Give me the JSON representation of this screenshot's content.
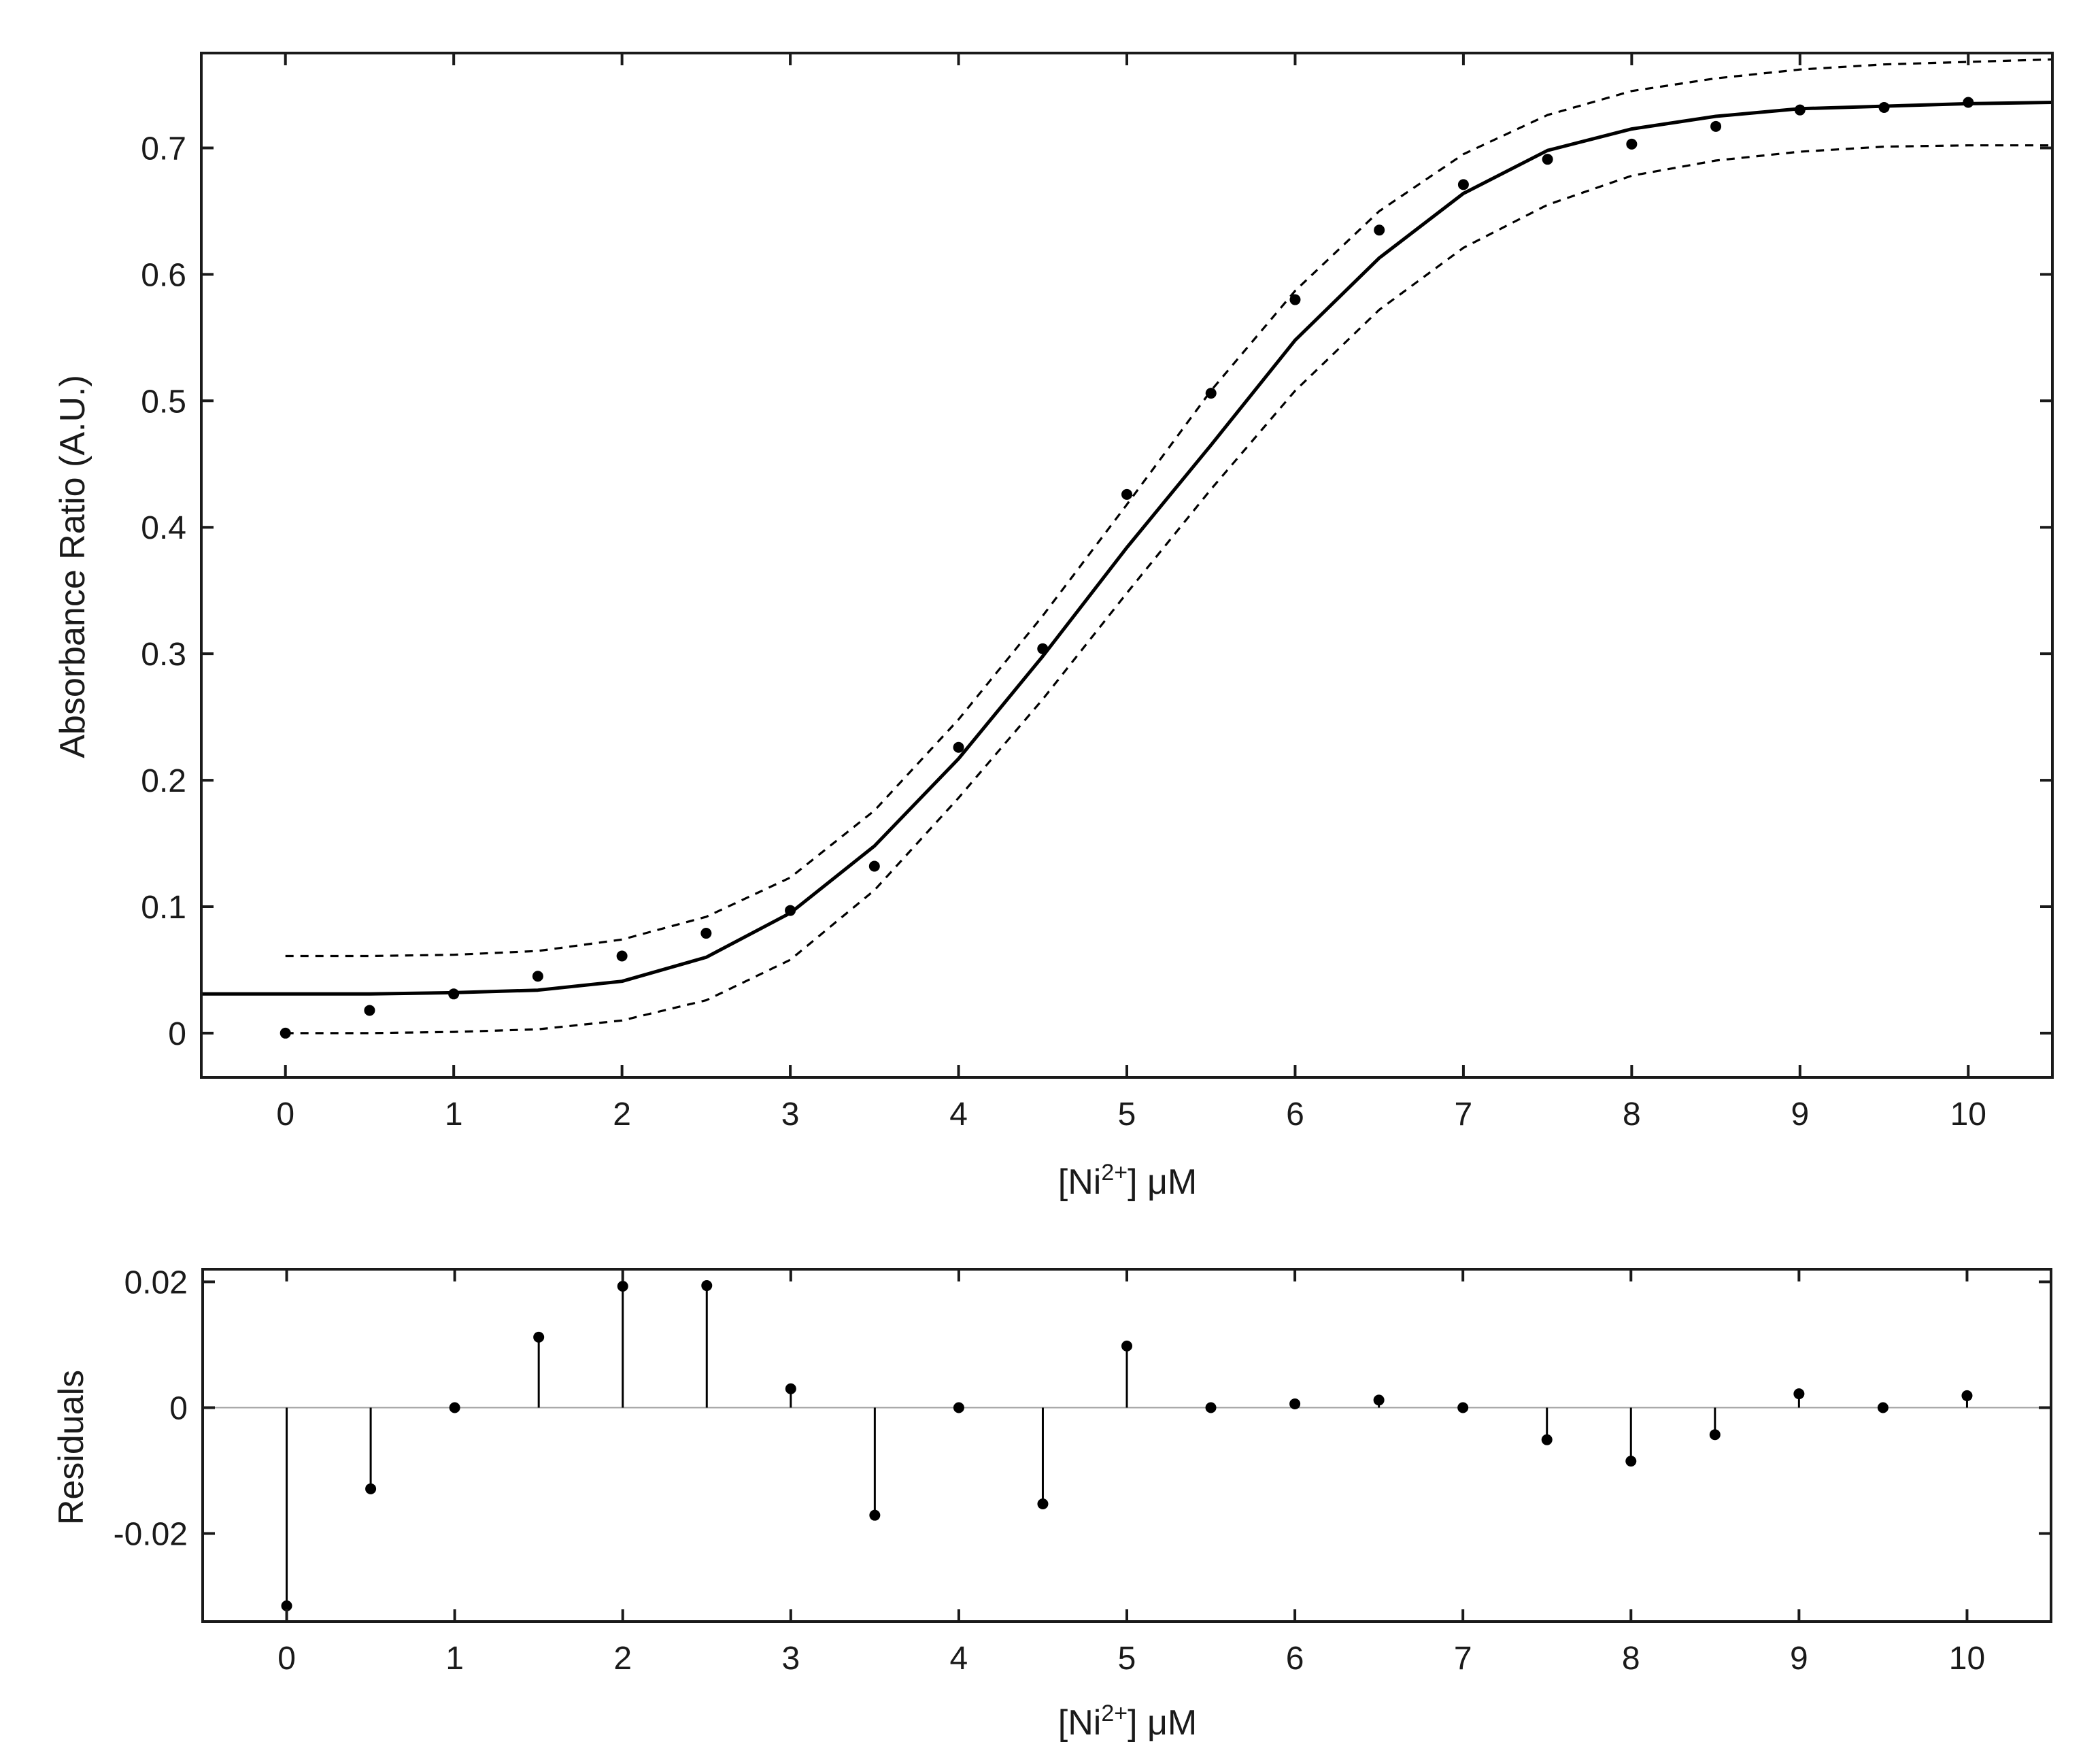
{
  "chart_data": [
    {
      "type": "scatter",
      "title": "",
      "xlabel": {
        "prefix": "[Ni",
        "superscript": "2+",
        "suffix": "] μM"
      },
      "ylabel": "Absorbance Ratio (A.U.)",
      "xlim": [
        -0.5,
        10.5
      ],
      "ylim": [
        -0.035,
        0.775
      ],
      "x_ticks": [
        0,
        1,
        2,
        3,
        4,
        5,
        6,
        7,
        8,
        9,
        10
      ],
      "x_tick_labels": [
        "0",
        "1",
        "2",
        "3",
        "4",
        "5",
        "6",
        "7",
        "8",
        "9",
        "10"
      ],
      "y_ticks": [
        0,
        0.1,
        0.2,
        0.3,
        0.4,
        0.5,
        0.6,
        0.7
      ],
      "y_tick_labels": [
        "0",
        "0.1",
        "0.2",
        "0.3",
        "0.4",
        "0.5",
        "0.6",
        "0.7"
      ],
      "grid": false,
      "series": [
        {
          "role": "data points",
          "style": "dot",
          "color": "#000000",
          "x": [
            0,
            0.5,
            1,
            1.5,
            2,
            2.5,
            3,
            3.5,
            4,
            4.5,
            5,
            5.5,
            6,
            6.5,
            7,
            7.5,
            8,
            8.5,
            9,
            9.5,
            10
          ],
          "y": [
            0.0,
            0.018,
            0.031,
            0.045,
            0.061,
            0.079,
            0.097,
            0.132,
            0.226,
            0.304,
            0.426,
            0.506,
            0.58,
            0.635,
            0.671,
            0.691,
            0.703,
            0.717,
            0.73,
            0.732,
            0.736
          ]
        },
        {
          "role": "fit",
          "style": "solid",
          "color": "#000000",
          "x": [
            -0.5,
            0,
            0.5,
            1,
            1.5,
            2,
            2.5,
            3,
            3.5,
            4,
            4.5,
            5,
            5.5,
            6,
            6.5,
            7,
            7.5,
            8,
            8.5,
            9,
            9.5,
            10,
            10.5
          ],
          "y": [
            0.031,
            0.031,
            0.031,
            0.032,
            0.034,
            0.041,
            0.06,
            0.095,
            0.148,
            0.217,
            0.298,
            0.384,
            0.465,
            0.548,
            0.613,
            0.664,
            0.698,
            0.715,
            0.725,
            0.731,
            0.733,
            0.735,
            0.736
          ]
        },
        {
          "role": "upper confidence bound",
          "style": "dashed",
          "color": "#000000",
          "x": [
            0,
            0.5,
            1,
            1.5,
            2,
            2.5,
            3,
            3.5,
            4,
            4.5,
            5,
            5.5,
            6,
            6.5,
            7,
            7.5,
            8,
            8.5,
            9,
            9.5,
            10,
            10.5
          ],
          "y": [
            0.061,
            0.061,
            0.062,
            0.065,
            0.074,
            0.092,
            0.123,
            0.176,
            0.248,
            0.33,
            0.418,
            0.508,
            0.587,
            0.65,
            0.695,
            0.726,
            0.745,
            0.755,
            0.762,
            0.766,
            0.768,
            0.77
          ]
        },
        {
          "role": "lower confidence bound",
          "style": "dashed",
          "color": "#000000",
          "x": [
            0,
            0.5,
            1,
            1.5,
            2,
            2.5,
            3,
            3.5,
            4,
            4.5,
            5,
            5.5,
            6,
            6.5,
            7,
            7.5,
            8,
            8.5,
            9,
            9.5,
            10,
            10.5
          ],
          "y": [
            0.0,
            0.0,
            0.001,
            0.003,
            0.01,
            0.026,
            0.058,
            0.113,
            0.186,
            0.264,
            0.348,
            0.43,
            0.508,
            0.572,
            0.621,
            0.655,
            0.678,
            0.69,
            0.697,
            0.701,
            0.702,
            0.702
          ]
        }
      ]
    },
    {
      "type": "stem",
      "title": "",
      "xlabel": {
        "prefix": "[Ni",
        "superscript": "2+",
        "suffix": "] μM"
      },
      "ylabel": "Residuals",
      "xlim": [
        -0.5,
        10.5
      ],
      "ylim": [
        -0.034,
        0.022
      ],
      "x_ticks": [
        0,
        1,
        2,
        3,
        4,
        5,
        6,
        7,
        8,
        9,
        10
      ],
      "x_tick_labels": [
        "0",
        "1",
        "2",
        "3",
        "4",
        "5",
        "6",
        "7",
        "8",
        "9",
        "10"
      ],
      "y_ticks": [
        -0.02,
        0,
        0.02
      ],
      "y_tick_labels": [
        "-0.02",
        "0",
        "0.02"
      ],
      "zero_line": true,
      "grid": false,
      "series": [
        {
          "role": "residuals",
          "color": "#000000",
          "x": [
            0,
            0.5,
            1,
            1.5,
            2,
            2.5,
            3,
            3.5,
            4,
            4.5,
            5,
            5.5,
            6,
            6.5,
            7,
            7.5,
            8,
            8.5,
            9,
            9.5,
            10
          ],
          "y": [
            -0.0315,
            -0.0129,
            0.0,
            0.0112,
            0.0193,
            0.0194,
            0.003,
            -0.0171,
            0.0,
            -0.0153,
            0.0098,
            0.0,
            0.0006,
            0.0012,
            0.0,
            -0.0051,
            -0.0085,
            -0.0043,
            0.0022,
            0.0,
            0.0019
          ]
        }
      ]
    }
  ]
}
